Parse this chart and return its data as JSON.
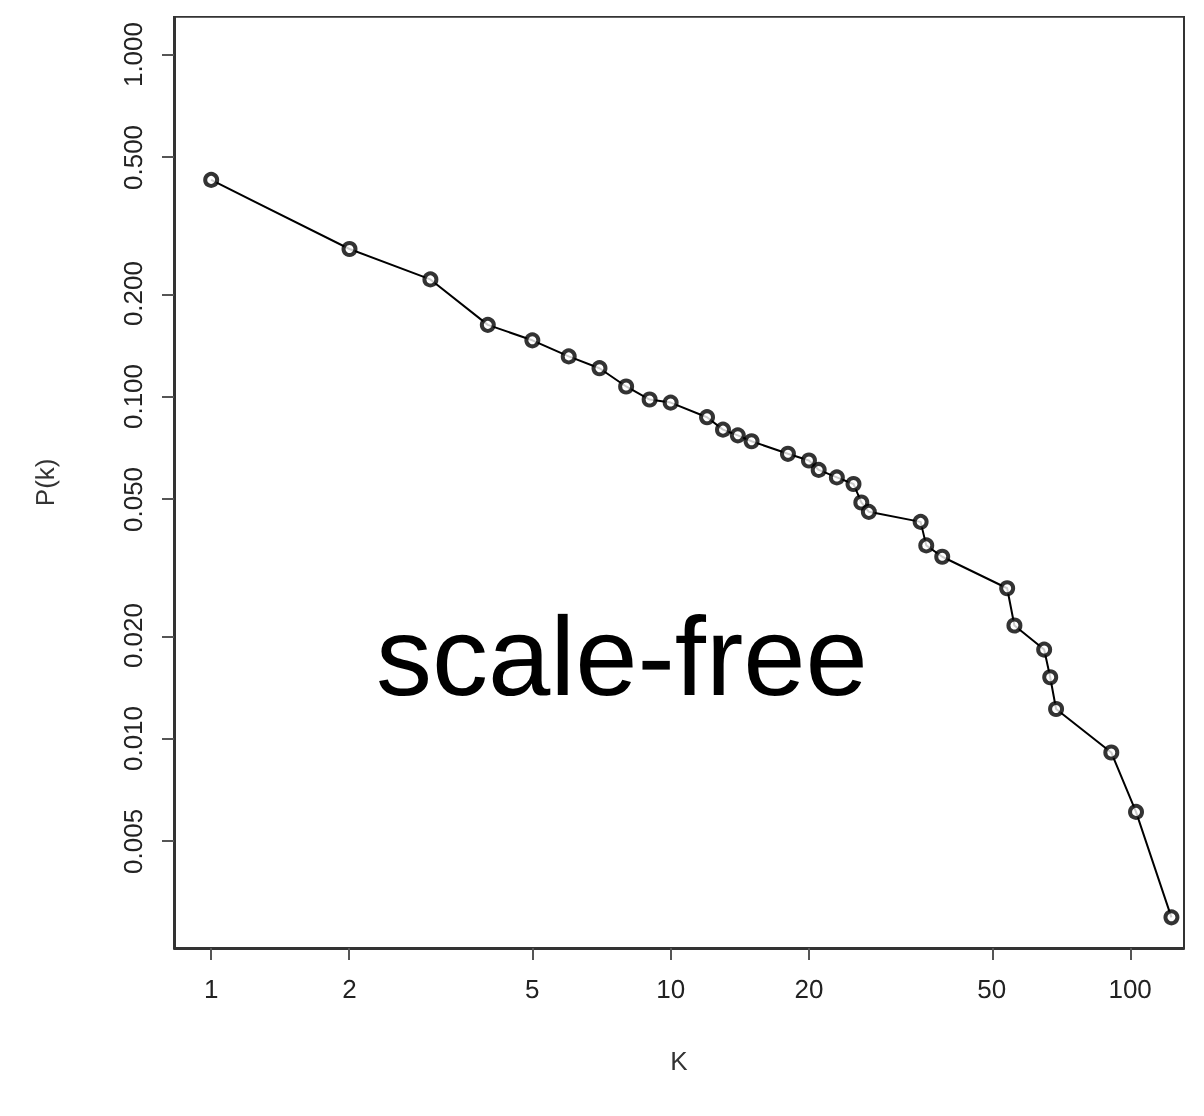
{
  "chart_data": {
    "type": "line",
    "xlabel": "K",
    "ylabel": "P(k)",
    "log": "xy",
    "marker": "circle",
    "grid": false,
    "annotations": [
      "scale-free"
    ],
    "xlim": [
      0.83,
      131
    ],
    "ylim": [
      0.00244,
      1.29
    ],
    "xticks": [
      1,
      2,
      5,
      10,
      20,
      50,
      100
    ],
    "yticks": [
      {
        "value": 0.005,
        "label": "0.005"
      },
      {
        "value": 0.01,
        "label": "0.010"
      },
      {
        "value": 0.02,
        "label": "0.020"
      },
      {
        "value": 0.05,
        "label": "0.050"
      },
      {
        "value": 0.1,
        "label": "0.100"
      },
      {
        "value": 0.2,
        "label": "0.200"
      },
      {
        "value": 0.5,
        "label": "0.500"
      },
      {
        "value": 1,
        "label": "1.000"
      }
    ],
    "series": [
      {
        "color": "#000000",
        "x": [
          1,
          2,
          3,
          4,
          5,
          6,
          7,
          8,
          9,
          10,
          12,
          13,
          14,
          15,
          18,
          20,
          21,
          23,
          25,
          26,
          27,
          35,
          36,
          39,
          54,
          56,
          65,
          67,
          69,
          91,
          103,
          123
        ],
        "values": [
          0.43,
          0.27,
          0.22,
          0.162,
          0.146,
          0.131,
          0.121,
          0.107,
          0.098,
          0.096,
          0.087,
          0.08,
          0.077,
          0.074,
          0.068,
          0.065,
          0.061,
          0.058,
          0.0555,
          0.049,
          0.046,
          0.043,
          0.0367,
          0.034,
          0.0275,
          0.0214,
          0.0182,
          0.0151,
          0.0122,
          0.0091,
          0.0061,
          0.003
        ]
      }
    ]
  }
}
